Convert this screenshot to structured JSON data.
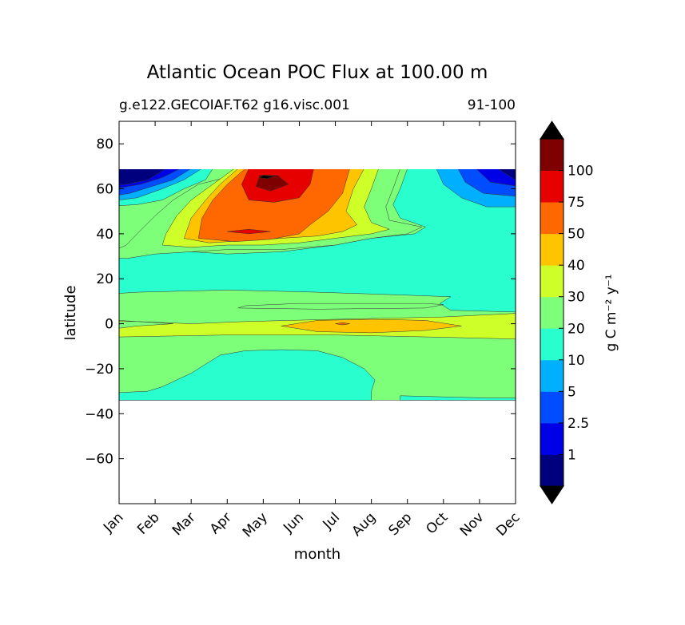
{
  "chart_data": {
    "type": "heatmap",
    "title": "Atlantic Ocean POC Flux at 100.00 m",
    "subtitle_left": "g.e122.GECOIAF.T62 g16.visc.001",
    "subtitle_right": "91-100",
    "xlabel": "month",
    "ylabel": "latitude",
    "x_ticks": [
      "Jan",
      "Feb",
      "Mar",
      "Apr",
      "May",
      "Jun",
      "Jul",
      "Aug",
      "Sep",
      "Oct",
      "Nov",
      "Dec"
    ],
    "y_ticks": [
      80,
      60,
      40,
      20,
      0,
      -20,
      -40,
      -60
    ],
    "ylim": [
      -80,
      90
    ],
    "data_lat_range": [
      -34,
      69
    ],
    "colorbar": {
      "label": "g C m⁻² y⁻¹",
      "tick_labels": [
        "1",
        "2.5",
        "5",
        "10",
        "20",
        "30",
        "40",
        "50",
        "75",
        "100"
      ],
      "levels": [
        0,
        1,
        2.5,
        5,
        10,
        20,
        30,
        40,
        50,
        75,
        100,
        125
      ],
      "colors": [
        "#00007f",
        "#0000e6",
        "#004cff",
        "#00b0ff",
        "#29ffce",
        "#7dff7a",
        "#ceff29",
        "#ffc400",
        "#ff6800",
        "#e60000",
        "#7f0000"
      ],
      "extend_low_color": "#000000",
      "extend_high_color": "#000000"
    },
    "regions": [
      {
        "level_band": "20-30",
        "description_months": "Jan-Dec",
        "lat": [
          -34,
          69
        ]
      },
      {
        "level_band": "10-20",
        "months": [
          "Jan",
          "Dec"
        ],
        "lat": [
          -34,
          -12
        ]
      },
      {
        "level_band": "10-20",
        "months": [
          "Jan",
          "Dec"
        ],
        "lat": [
          15,
          69
        ]
      },
      {
        "level_band": "30-40",
        "months": [
          "Jan",
          "Dec"
        ],
        "lat": [
          -6,
          2
        ]
      },
      {
        "level_band": "40-50",
        "months": [
          "Jul",
          "Sep"
        ],
        "lat": [
          -4,
          2
        ]
      },
      {
        "level_band": "50-75",
        "months": [
          "Apr",
          "Jul"
        ],
        "lat": [
          35,
          69
        ]
      },
      {
        "level_band": "75-100",
        "months": [
          "May",
          "Jun"
        ],
        "lat": [
          55,
          69
        ]
      },
      {
        "level_band": "100-125",
        "months": [
          "May"
        ],
        "lat": [
          62,
          67
        ]
      },
      {
        "level_band": "0-1",
        "months": [
          "Jan",
          "Feb"
        ],
        "lat": [
          55,
          69
        ]
      },
      {
        "level_band": "0-1",
        "months": [
          "Nov",
          "Dec"
        ],
        "lat": [
          60,
          69
        ]
      }
    ]
  }
}
